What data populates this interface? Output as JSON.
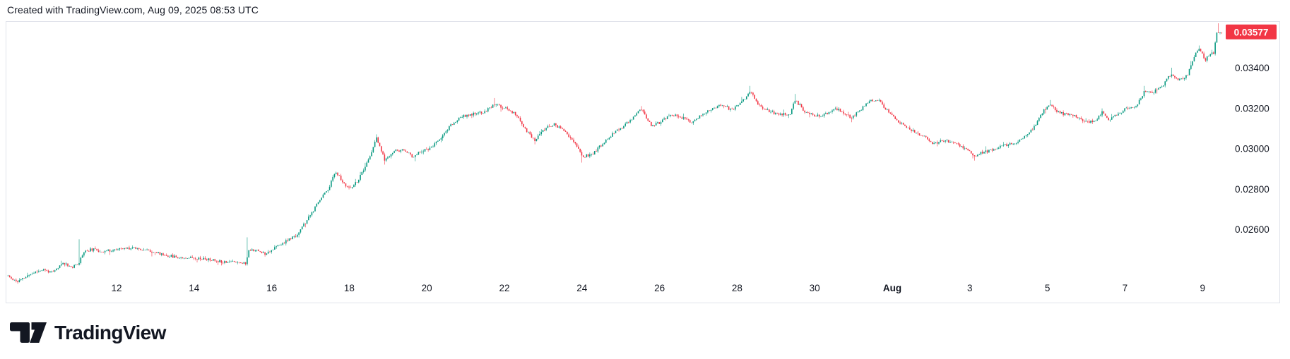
{
  "header": {
    "attribution": "Created with TradingView.com, Aug 09, 2025 08:53 UTC"
  },
  "footer": {
    "brand_name": "TradingView"
  },
  "style": {
    "up_color": "#089981",
    "down_color": "#F23645",
    "badge_bg": "#F23645",
    "badge_text_color": "#FFFFFF",
    "axis_text_color": "#131722",
    "border_color": "#E0E3EB",
    "background": "#FFFFFF",
    "logo_color": "#131722"
  },
  "chart_data": {
    "type": "candlestick",
    "interval": "1h",
    "grid": "off",
    "legend_position": "none",
    "time_axis": {
      "labels": [
        {
          "text": "12",
          "day": 12,
          "bold": false
        },
        {
          "text": "14",
          "day": 14,
          "bold": false
        },
        {
          "text": "16",
          "day": 16,
          "bold": false
        },
        {
          "text": "18",
          "day": 18,
          "bold": false
        },
        {
          "text": "20",
          "day": 20,
          "bold": false
        },
        {
          "text": "22",
          "day": 22,
          "bold": false
        },
        {
          "text": "24",
          "day": 24,
          "bold": false
        },
        {
          "text": "26",
          "day": 26,
          "bold": false
        },
        {
          "text": "28",
          "day": 28,
          "bold": false
        },
        {
          "text": "30",
          "day": 30,
          "bold": false
        },
        {
          "text": "Aug",
          "day": 32,
          "bold": true
        },
        {
          "text": "3",
          "day": 34,
          "bold": false
        },
        {
          "text": "5",
          "day": 36,
          "bold": false
        },
        {
          "text": "7",
          "day": 38,
          "bold": false
        },
        {
          "text": "9",
          "day": 40,
          "bold": false
        }
      ]
    },
    "price_axis": {
      "labels": [
        {
          "text": "0.03400",
          "value": 0.034
        },
        {
          "text": "0.03200",
          "value": 0.032
        },
        {
          "text": "0.03000",
          "value": 0.03
        },
        {
          "text": "0.02800",
          "value": 0.028
        },
        {
          "text": "0.02600",
          "value": 0.026
        }
      ]
    },
    "last_price": {
      "text": "0.03577",
      "value": 0.03577,
      "direction": "down-tick"
    },
    "visible_range": {
      "day_start": 9.16,
      "day_end": 40.55,
      "price_low": 0.0233,
      "price_high": 0.0362
    },
    "close_path_anchors": [
      [
        9.16,
        0.0237
      ],
      [
        9.45,
        0.0234
      ],
      [
        9.81,
        0.0238
      ],
      [
        10.09,
        0.024
      ],
      [
        10.36,
        0.02385
      ],
      [
        10.63,
        0.02435
      ],
      [
        10.87,
        0.0241
      ],
      [
        11.05,
        0.0244
      ],
      [
        11.14,
        0.02487
      ],
      [
        11.36,
        0.025
      ],
      [
        11.64,
        0.0249
      ],
      [
        12.05,
        0.025
      ],
      [
        12.46,
        0.0251
      ],
      [
        12.91,
        0.0249
      ],
      [
        13.28,
        0.0247
      ],
      [
        13.64,
        0.0246
      ],
      [
        14.0,
        0.0246
      ],
      [
        14.37,
        0.0245
      ],
      [
        14.73,
        0.0244
      ],
      [
        15.1,
        0.0244
      ],
      [
        15.33,
        0.0243
      ],
      [
        15.42,
        0.025
      ],
      [
        15.55,
        0.02498
      ],
      [
        15.83,
        0.0248
      ],
      [
        16.1,
        0.0251
      ],
      [
        16.37,
        0.0254
      ],
      [
        16.64,
        0.0257
      ],
      [
        16.86,
        0.0263
      ],
      [
        17.1,
        0.027
      ],
      [
        17.28,
        0.0276
      ],
      [
        17.46,
        0.028
      ],
      [
        17.65,
        0.0289
      ],
      [
        17.87,
        0.0282
      ],
      [
        18.05,
        0.028
      ],
      [
        18.25,
        0.0285
      ],
      [
        18.47,
        0.0293
      ],
      [
        18.7,
        0.0305
      ],
      [
        18.92,
        0.0294
      ],
      [
        19.16,
        0.0299
      ],
      [
        19.41,
        0.0299
      ],
      [
        19.63,
        0.0296
      ],
      [
        19.89,
        0.0299
      ],
      [
        20.11,
        0.03
      ],
      [
        20.38,
        0.0306
      ],
      [
        20.65,
        0.0312
      ],
      [
        20.92,
        0.0316
      ],
      [
        21.2,
        0.0317
      ],
      [
        21.47,
        0.0318
      ],
      [
        21.74,
        0.0322
      ],
      [
        22.02,
        0.032
      ],
      [
        22.29,
        0.0317
      ],
      [
        22.56,
        0.0309
      ],
      [
        22.78,
        0.0304
      ],
      [
        23.06,
        0.031
      ],
      [
        23.29,
        0.0312
      ],
      [
        23.57,
        0.0308
      ],
      [
        23.78,
        0.0304
      ],
      [
        24.0,
        0.0296
      ],
      [
        24.26,
        0.0297
      ],
      [
        24.51,
        0.0302
      ],
      [
        24.77,
        0.0307
      ],
      [
        25.02,
        0.031
      ],
      [
        25.3,
        0.0315
      ],
      [
        25.53,
        0.032
      ],
      [
        25.79,
        0.0311
      ],
      [
        26.03,
        0.0313
      ],
      [
        26.3,
        0.0317
      ],
      [
        26.59,
        0.0315
      ],
      [
        26.84,
        0.0313
      ],
      [
        27.12,
        0.0317
      ],
      [
        27.39,
        0.032
      ],
      [
        27.61,
        0.0322
      ],
      [
        27.85,
        0.0319
      ],
      [
        28.08,
        0.0322
      ],
      [
        28.34,
        0.0328
      ],
      [
        28.58,
        0.0321
      ],
      [
        28.85,
        0.0318
      ],
      [
        29.12,
        0.0317
      ],
      [
        29.36,
        0.0317
      ],
      [
        29.5,
        0.0324
      ],
      [
        29.76,
        0.0318
      ],
      [
        30.03,
        0.0316
      ],
      [
        30.3,
        0.0317
      ],
      [
        30.54,
        0.032
      ],
      [
        30.78,
        0.0317
      ],
      [
        30.96,
        0.0315
      ],
      [
        31.22,
        0.032
      ],
      [
        31.44,
        0.0324
      ],
      [
        31.64,
        0.0324
      ],
      [
        31.86,
        0.0319
      ],
      [
        32.09,
        0.0314
      ],
      [
        32.35,
        0.0311
      ],
      [
        32.58,
        0.0308
      ],
      [
        32.82,
        0.0306
      ],
      [
        33.07,
        0.0302
      ],
      [
        33.31,
        0.0304
      ],
      [
        33.55,
        0.0303
      ],
      [
        33.77,
        0.0301
      ],
      [
        33.99,
        0.0299
      ],
      [
        34.11,
        0.0296
      ],
      [
        34.31,
        0.0298
      ],
      [
        34.53,
        0.0299
      ],
      [
        34.77,
        0.0301
      ],
      [
        35.0,
        0.0302
      ],
      [
        35.22,
        0.0303
      ],
      [
        35.44,
        0.0306
      ],
      [
        35.68,
        0.0311
      ],
      [
        35.91,
        0.0319
      ],
      [
        36.06,
        0.0322
      ],
      [
        36.22,
        0.0319
      ],
      [
        36.4,
        0.0317
      ],
      [
        36.59,
        0.0317
      ],
      [
        36.82,
        0.0315
      ],
      [
        37.04,
        0.0313
      ],
      [
        37.26,
        0.0314
      ],
      [
        37.41,
        0.0318
      ],
      [
        37.59,
        0.0314
      ],
      [
        37.81,
        0.0317
      ],
      [
        38.05,
        0.032
      ],
      [
        38.28,
        0.0321
      ],
      [
        38.5,
        0.0328
      ],
      [
        38.72,
        0.0328
      ],
      [
        38.96,
        0.0331
      ],
      [
        39.19,
        0.0337
      ],
      [
        39.38,
        0.0334
      ],
      [
        39.6,
        0.0336
      ],
      [
        39.78,
        0.0345
      ],
      [
        39.91,
        0.035
      ],
      [
        40.07,
        0.0344
      ],
      [
        40.2,
        0.0347
      ],
      [
        40.29,
        0.0347
      ],
      [
        40.36,
        0.0358
      ],
      [
        40.46,
        0.03577
      ]
    ],
    "wick_extremes": [
      {
        "day": 9.45,
        "low": 0.0233
      },
      {
        "day": 11.05,
        "high": 0.0255,
        "low": 0.0242
      },
      {
        "day": 15.35,
        "high": 0.0256,
        "low": 0.0242
      },
      {
        "day": 18.7,
        "high": 0.0307
      },
      {
        "day": 18.92,
        "low": 0.0292
      },
      {
        "day": 21.74,
        "high": 0.0325
      },
      {
        "day": 24.0,
        "low": 0.0293
      },
      {
        "day": 25.53,
        "high": 0.0321
      },
      {
        "day": 28.34,
        "high": 0.0331
      },
      {
        "day": 29.5,
        "high": 0.0327
      },
      {
        "day": 30.96,
        "low": 0.0313
      },
      {
        "day": 34.11,
        "low": 0.0294
      },
      {
        "day": 36.06,
        "high": 0.0324
      },
      {
        "day": 38.5,
        "high": 0.0331
      },
      {
        "day": 39.19,
        "high": 0.034
      },
      {
        "day": 39.91,
        "high": 0.0351
      },
      {
        "day": 40.4,
        "high": 0.0362
      }
    ],
    "noise_seed": 11
  }
}
